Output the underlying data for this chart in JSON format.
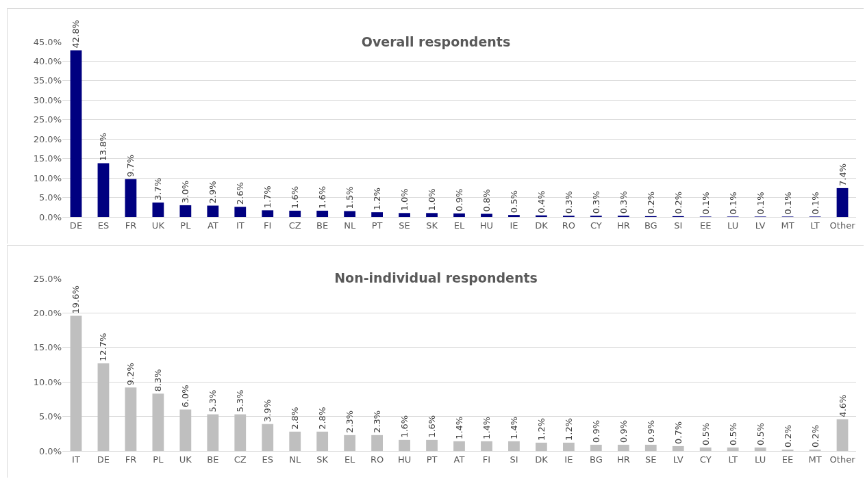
{
  "chart_data": [
    {
      "type": "bar",
      "title": "Overall respondents",
      "categories": [
        "DE",
        "ES",
        "FR",
        "UK",
        "PL",
        "AT",
        "IT",
        "FI",
        "CZ",
        "BE",
        "NL",
        "PT",
        "SE",
        "SK",
        "EL",
        "HU",
        "IE",
        "DK",
        "RO",
        "CY",
        "HR",
        "BG",
        "SI",
        "EE",
        "LU",
        "LV",
        "MT",
        "LT",
        "Other"
      ],
      "values": [
        42.8,
        13.8,
        9.7,
        3.7,
        3.0,
        2.9,
        2.6,
        1.7,
        1.6,
        1.6,
        1.5,
        1.2,
        1.0,
        1.0,
        0.9,
        0.8,
        0.5,
        0.4,
        0.3,
        0.3,
        0.3,
        0.2,
        0.2,
        0.1,
        0.1,
        0.1,
        0.1,
        0.1,
        7.4
      ],
      "value_labels": [
        "42.8%",
        "13.8%",
        "9.7%",
        "3.7%",
        "3.0%",
        "2.9%",
        "2.6%",
        "1.7%",
        "1.6%",
        "1.6%",
        "1.5%",
        "1.2%",
        "1.0%",
        "1.0%",
        "0.9%",
        "0.8%",
        "0.5%",
        "0.4%",
        "0.3%",
        "0.3%",
        "0.3%",
        "0.2%",
        "0.2%",
        "0.1%",
        "0.1%",
        "0.1%",
        "0.1%",
        "0.1%",
        "7.4%"
      ],
      "color": "#000080",
      "ylim": [
        0,
        45
      ],
      "yticks": [
        {
          "value": 0,
          "label": "0.0%"
        },
        {
          "value": 5,
          "label": "5.0%"
        },
        {
          "value": 10,
          "label": "10.0%"
        },
        {
          "value": 15,
          "label": "15.0%"
        },
        {
          "value": 20,
          "label": "20.0%"
        },
        {
          "value": 25,
          "label": "25.0%"
        },
        {
          "value": 30,
          "label": "30.0%"
        },
        {
          "value": 35,
          "label": "35.0%"
        },
        {
          "value": 40,
          "label": "40.0%"
        },
        {
          "value": 45,
          "label": "45.0%"
        }
      ],
      "grid": "y"
    },
    {
      "type": "bar",
      "title": "Non-individual respondents",
      "categories": [
        "IT",
        "DE",
        "FR",
        "PL",
        "UK",
        "BE",
        "CZ",
        "ES",
        "NL",
        "SK",
        "EL",
        "RO",
        "HU",
        "PT",
        "AT",
        "FI",
        "SI",
        "DK",
        "IE",
        "BG",
        "HR",
        "SE",
        "LV",
        "CY",
        "LT",
        "LU",
        "EE",
        "MT",
        "Other"
      ],
      "values": [
        19.6,
        12.7,
        9.2,
        8.3,
        6.0,
        5.3,
        5.3,
        3.9,
        2.8,
        2.8,
        2.3,
        2.3,
        1.6,
        1.6,
        1.4,
        1.4,
        1.4,
        1.2,
        1.2,
        0.9,
        0.9,
        0.9,
        0.7,
        0.5,
        0.5,
        0.5,
        0.2,
        0.2,
        4.6
      ],
      "value_labels": [
        "19.6%",
        "12.7%",
        "9.2%",
        "8.3%",
        "6.0%",
        "5.3%",
        "5.3%",
        "3.9%",
        "2.8%",
        "2.8%",
        "2.3%",
        "2.3%",
        "1.6%",
        "1.6%",
        "1.4%",
        "1.4%",
        "1.4%",
        "1.2%",
        "1.2%",
        "0.9%",
        "0.9%",
        "0.9%",
        "0.7%",
        "0.5%",
        "0.5%",
        "0.5%",
        "0.2%",
        "0.2%",
        "4.6%"
      ],
      "color": "#bfbfbf",
      "ylim": [
        0,
        25
      ],
      "yticks": [
        {
          "value": 0,
          "label": "0.0%"
        },
        {
          "value": 5,
          "label": "5.0%"
        },
        {
          "value": 10,
          "label": "10.0%"
        },
        {
          "value": 15,
          "label": "15.0%"
        },
        {
          "value": 20,
          "label": "20.0%"
        },
        {
          "value": 25,
          "label": "25.0%"
        }
      ],
      "grid": "y"
    }
  ]
}
